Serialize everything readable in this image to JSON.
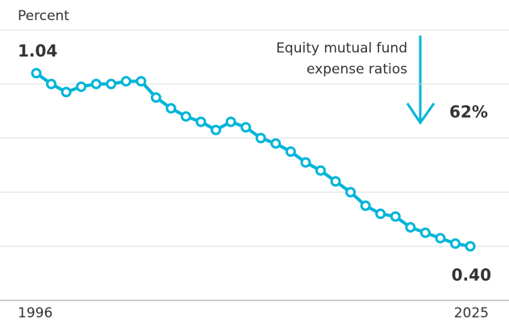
{
  "chart_data": {
    "type": "line",
    "y_label": "Percent",
    "annotation": {
      "text": [
        "Equity mutual fund",
        "expense ratios"
      ],
      "change": "62%"
    },
    "x": [
      1996,
      1997,
      1998,
      1999,
      2000,
      2001,
      2002,
      2003,
      2004,
      2005,
      2006,
      2007,
      2008,
      2009,
      2010,
      2011,
      2012,
      2013,
      2014,
      2015,
      2016,
      2017,
      2018,
      2019,
      2020,
      2021,
      2022,
      2023,
      2024,
      2025
    ],
    "series": [
      {
        "color": "#00b5d8",
        "values": [
          1.04,
          1.0,
          0.97,
          0.99,
          1.0,
          1.0,
          1.01,
          1.01,
          0.95,
          0.91,
          0.88,
          0.86,
          0.83,
          0.86,
          0.84,
          0.8,
          0.78,
          0.75,
          0.71,
          0.68,
          0.64,
          0.6,
          0.55,
          0.52,
          0.51,
          0.47,
          0.45,
          0.43,
          0.41,
          0.4
        ],
        "value_labels": [
          "1.04",
          null,
          null,
          null,
          null,
          null,
          null,
          null,
          null,
          null,
          null,
          null,
          null,
          null,
          null,
          null,
          null,
          null,
          null,
          null,
          null,
          null,
          null,
          null,
          null,
          null,
          null,
          null,
          null,
          "0.40"
        ]
      }
    ],
    "xlim": [
      1996,
      2025
    ],
    "xticks": [
      1996,
      2025
    ],
    "ylim": [
      0.2,
      1.2
    ],
    "yticks": [
      0.2,
      0.4,
      0.6,
      0.8,
      1.0,
      1.2
    ],
    "grid": true
  }
}
